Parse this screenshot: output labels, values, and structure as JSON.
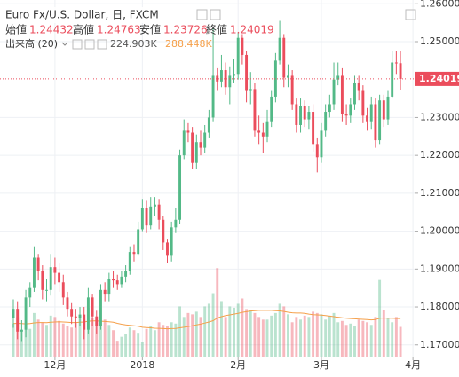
{
  "chart_data": {
    "type": "candlestick",
    "title": "Euro Fx/U.S. Dollar, 日, FXCM",
    "ohlc_labels": [
      "始値",
      "高値",
      "安値",
      "終値"
    ],
    "volume_title": "出来高 (20)",
    "volume_label": "224.903K",
    "volume_ma_label": "288.448K",
    "up_color": "#53b987",
    "down_color": "#eb4d5c",
    "ma_color": "#f5a04a",
    "grid": true,
    "xlim": [
      -3.2,
      96.4
    ],
    "xticks": [
      {
        "value": 10,
        "label": "12月"
      },
      {
        "value": 31,
        "label": "2018"
      },
      {
        "value": 54,
        "label": "2月"
      },
      {
        "value": 74,
        "label": "3月"
      },
      {
        "value": 96,
        "label": "4月"
      }
    ],
    "ylim": [
      1.1669,
      1.261
    ],
    "yticks": [
      {
        "value": 1.17,
        "label": "1.17000"
      },
      {
        "value": 1.18,
        "label": "1.18000"
      },
      {
        "value": 1.19,
        "label": "1.19000"
      },
      {
        "value": 1.2,
        "label": "1.20000"
      },
      {
        "value": 1.21,
        "label": "1.21000"
      },
      {
        "value": 1.22,
        "label": "1.22000"
      },
      {
        "value": 1.23,
        "label": "1.23000"
      },
      {
        "value": 1.25,
        "label": "1.25000"
      },
      {
        "value": 1.26,
        "label": "1.26000"
      }
    ],
    "volume_lim": [
      0,
      2700
    ],
    "open": [
      1.177,
      1.1795,
      1.1735,
      1.174,
      1.1825,
      1.185,
      1.193,
      1.1895,
      1.1845,
      1.1845,
      1.1905,
      1.189,
      1.1865,
      1.1825,
      1.1795,
      1.1775,
      1.177,
      1.178,
      1.174,
      1.1825,
      1.1775,
      1.175,
      1.1845,
      1.1835,
      1.1875,
      1.187,
      1.186,
      1.188,
      1.1895,
      1.1945,
      1.194,
      1.2005,
      1.206,
      1.2015,
      1.2065,
      1.207,
      1.203,
      1.197,
      1.1935,
      1.201,
      1.203,
      1.22,
      1.2265,
      1.226,
      1.218,
      1.2235,
      1.222,
      1.226,
      1.23,
      1.241,
      1.2395,
      1.2425,
      1.238,
      1.241,
      1.2415,
      1.251,
      1.2465,
      1.237,
      1.2375,
      1.2265,
      1.226,
      1.225,
      1.229,
      1.2355,
      1.245,
      1.251,
      1.2405,
      1.241,
      1.2335,
      1.228,
      1.233,
      1.2295,
      1.2315,
      1.223,
      1.2195,
      1.2265,
      1.2315,
      1.2335,
      1.24,
      1.241,
      1.231,
      1.2305,
      1.2335,
      1.239,
      1.237,
      1.2305,
      1.229,
      1.2335,
      1.224,
      1.2345,
      1.2295,
      1.2355,
      1.2445,
      1.24432
    ],
    "high": [
      1.182,
      1.1815,
      1.1765,
      1.1845,
      1.1865,
      1.196,
      1.194,
      1.191,
      1.1875,
      1.194,
      1.193,
      1.1915,
      1.1885,
      1.184,
      1.181,
      1.1795,
      1.18,
      1.18,
      1.185,
      1.1835,
      1.179,
      1.186,
      1.1865,
      1.189,
      1.1895,
      1.1885,
      1.1895,
      1.191,
      1.196,
      1.1965,
      1.2025,
      1.2085,
      1.208,
      1.209,
      1.209,
      1.2085,
      1.204,
      1.198,
      1.2025,
      1.206,
      1.2215,
      1.2295,
      1.2285,
      1.2275,
      1.2255,
      1.2265,
      1.228,
      1.232,
      1.2535,
      1.243,
      1.2465,
      1.2445,
      1.2435,
      1.2455,
      1.2525,
      1.252,
      1.2475,
      1.242,
      1.239,
      1.2305,
      1.2285,
      1.232,
      1.237,
      1.247,
      1.2555,
      1.252,
      1.244,
      1.2425,
      1.235,
      1.235,
      1.2345,
      1.233,
      1.2335,
      1.2245,
      1.2285,
      1.2335,
      1.236,
      1.2445,
      1.2445,
      1.243,
      1.2335,
      1.235,
      1.241,
      1.241,
      1.2385,
      1.2325,
      1.2355,
      1.235,
      1.236,
      1.236,
      1.237,
      1.2475,
      1.2475,
      1.24763
    ],
    "low": [
      1.1745,
      1.1715,
      1.171,
      1.172,
      1.18,
      1.184,
      1.187,
      1.182,
      1.1815,
      1.183,
      1.186,
      1.184,
      1.1805,
      1.1775,
      1.1755,
      1.1745,
      1.175,
      1.1715,
      1.173,
      1.175,
      1.173,
      1.174,
      1.1815,
      1.1815,
      1.185,
      1.1845,
      1.185,
      1.1865,
      1.1885,
      1.192,
      1.1935,
      1.2,
      1.1995,
      1.2005,
      1.204,
      1.2005,
      1.195,
      1.1915,
      1.192,
      1.1995,
      1.202,
      1.219,
      1.2235,
      1.2165,
      1.2165,
      1.22,
      1.2205,
      1.2245,
      1.229,
      1.237,
      1.238,
      1.236,
      1.2335,
      1.239,
      1.24,
      1.244,
      1.234,
      1.2335,
      1.225,
      1.223,
      1.2205,
      1.2235,
      1.2275,
      1.234,
      1.244,
      1.238,
      1.238,
      1.232,
      1.226,
      1.226,
      1.2275,
      1.227,
      1.221,
      1.2155,
      1.218,
      1.225,
      1.23,
      1.232,
      1.2385,
      1.229,
      1.228,
      1.2285,
      1.232,
      1.2345,
      1.2285,
      1.2265,
      1.227,
      1.222,
      1.223,
      1.2275,
      1.228,
      1.235,
      1.2415,
      1.23726
    ],
    "close": [
      1.1795,
      1.1735,
      1.174,
      1.1825,
      1.185,
      1.193,
      1.1895,
      1.1845,
      1.1845,
      1.1905,
      1.189,
      1.1865,
      1.1825,
      1.1795,
      1.1775,
      1.177,
      1.178,
      1.174,
      1.1825,
      1.1775,
      1.175,
      1.1845,
      1.1835,
      1.1875,
      1.187,
      1.186,
      1.188,
      1.1895,
      1.1945,
      1.194,
      1.2005,
      1.206,
      1.2015,
      1.2065,
      1.207,
      1.203,
      1.197,
      1.1935,
      1.201,
      1.203,
      1.22,
      1.2265,
      1.226,
      1.218,
      1.2235,
      1.222,
      1.226,
      1.23,
      1.241,
      1.2395,
      1.2425,
      1.238,
      1.241,
      1.2415,
      1.251,
      1.2465,
      1.237,
      1.2375,
      1.2265,
      1.226,
      1.225,
      1.229,
      1.2355,
      1.245,
      1.251,
      1.2405,
      1.241,
      1.2335,
      1.228,
      1.233,
      1.2295,
      1.2315,
      1.223,
      1.2195,
      1.2265,
      1.2315,
      1.2335,
      1.24,
      1.241,
      1.231,
      1.2305,
      1.2335,
      1.239,
      1.237,
      1.2305,
      1.229,
      1.2335,
      1.224,
      1.2345,
      1.2295,
      1.2355,
      1.2445,
      1.24432,
      1.24019
    ],
    "volume": [
      250,
      300,
      200,
      240,
      210,
      330,
      280,
      260,
      240,
      310,
      300,
      270,
      250,
      230,
      220,
      260,
      300,
      280,
      370,
      290,
      260,
      250,
      280,
      240,
      200,
      120,
      150,
      170,
      220,
      200,
      180,
      110,
      210,
      230,
      200,
      260,
      240,
      230,
      260,
      250,
      380,
      300,
      330,
      320,
      340,
      300,
      380,
      400,
      480,
      670,
      420,
      300,
      380,
      370,
      400,
      440,
      360,
      350,
      330,
      300,
      280,
      280,
      310,
      330,
      400,
      380,
      320,
      260,
      300,
      280,
      310,
      300,
      340,
      330,
      320,
      280,
      310,
      330,
      260,
      270,
      240,
      250,
      230,
      280,
      270,
      260,
      240,
      300,
      580,
      350,
      290,
      260,
      300,
      224.903
    ],
    "volume_ma": [
      250,
      252,
      250,
      248,
      250,
      255,
      258,
      258,
      257,
      260,
      262,
      263,
      262,
      260,
      258,
      258,
      260,
      262,
      268,
      270,
      270,
      268,
      266,
      264,
      260,
      252,
      245,
      240,
      237,
      234,
      230,
      222,
      220,
      218,
      215,
      214,
      212,
      211,
      212,
      213,
      218,
      222,
      228,
      234,
      240,
      246,
      254,
      262,
      272,
      292,
      302,
      310,
      316,
      322,
      328,
      335,
      340,
      345,
      348,
      350,
      350,
      350,
      350,
      348,
      346,
      342,
      336,
      332,
      330,
      330,
      328,
      322,
      318,
      316,
      314,
      310,
      306,
      302,
      298,
      294,
      290,
      288,
      286,
      284,
      282,
      280,
      278,
      280,
      290,
      292,
      290,
      290,
      289,
      288.448
    ]
  }
}
